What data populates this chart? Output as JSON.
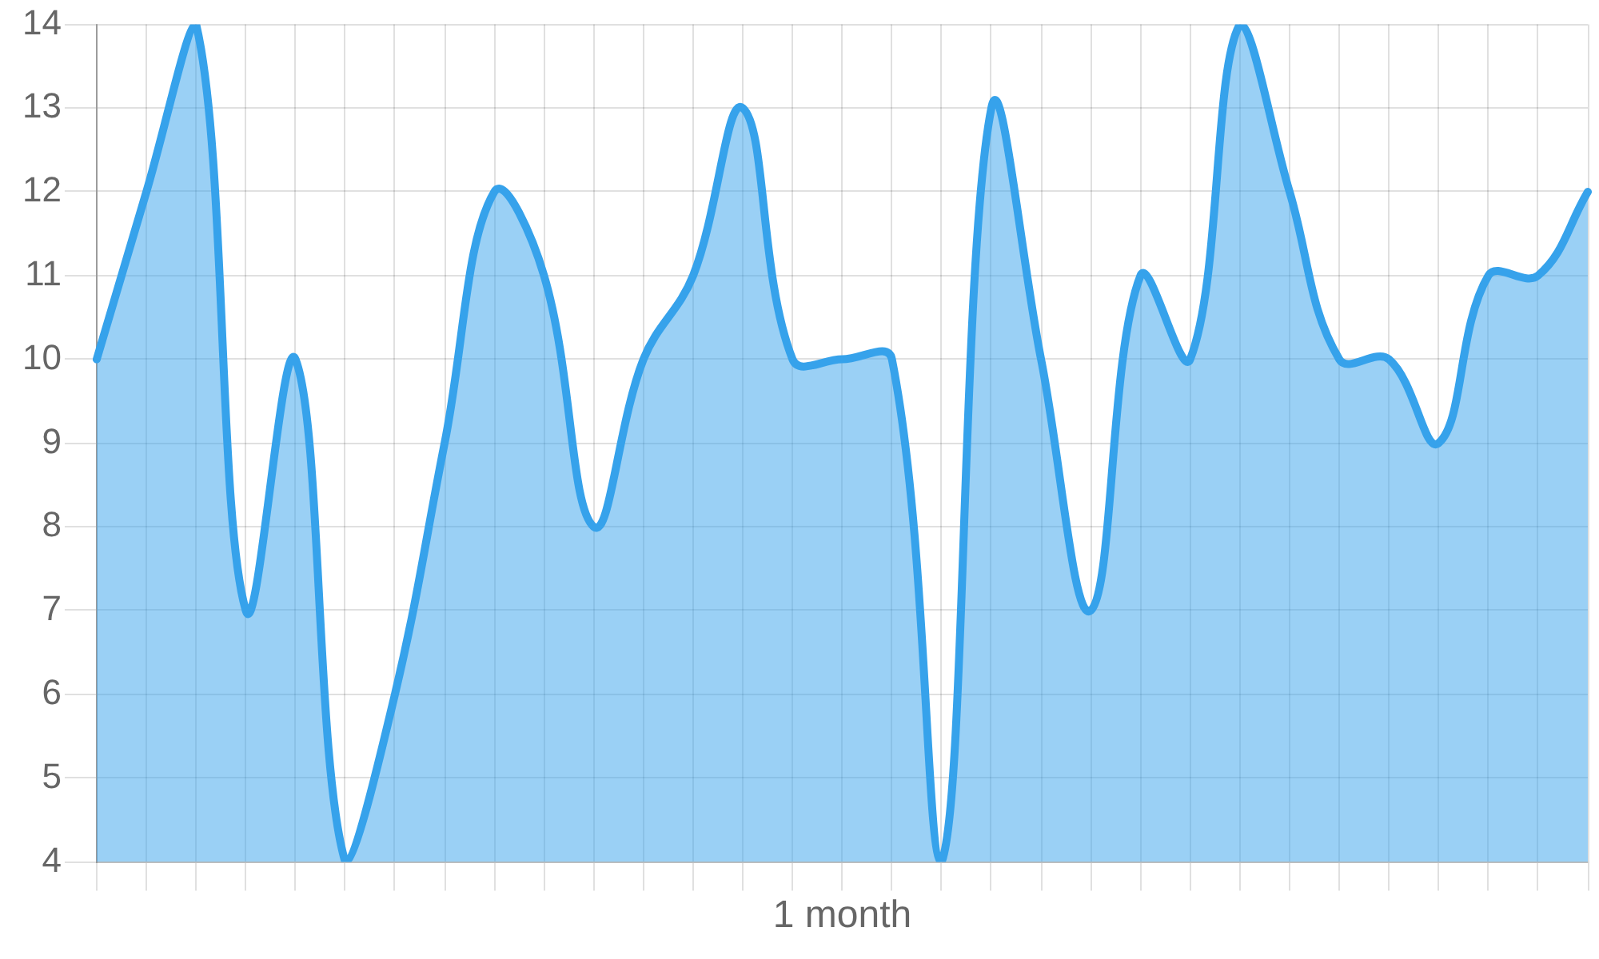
{
  "chart_data": {
    "type": "area",
    "xlabel": "1 month",
    "color": "#36a2eb",
    "categories": [
      null,
      null,
      null,
      null,
      null,
      null,
      null,
      null,
      null,
      null,
      null,
      null,
      null,
      null,
      null,
      null,
      null,
      null,
      null,
      null,
      null,
      null,
      null,
      null,
      null,
      null,
      null,
      null,
      null,
      null,
      null
    ],
    "values": [
      10,
      12,
      14,
      7,
      10,
      4,
      6,
      9,
      12,
      11,
      8,
      10,
      11,
      13,
      10,
      10,
      10,
      4,
      13,
      10,
      7,
      11,
      10,
      14,
      12,
      10,
      10,
      9,
      11,
      11,
      12
    ],
    "ylim": [
      4,
      14
    ],
    "yticks": [
      4,
      5,
      6,
      7,
      8,
      9,
      10,
      11,
      12,
      13,
      14
    ],
    "grid": true,
    "tick_labels": "y",
    "marker": "none"
  }
}
